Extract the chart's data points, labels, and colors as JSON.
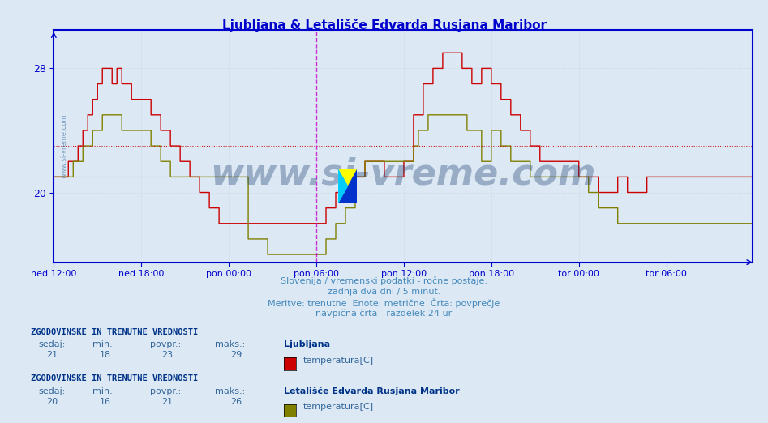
{
  "title": "Ljubljana & Letališče Edvarda Rusjana Maribor",
  "bg_color": "#dce9f5",
  "plot_bg_color": "#dce9f5",
  "axis_color": "#0000cc",
  "grid_color_minor": "#c8d8e8",
  "grid_color_major": "#b0c4d8",
  "lj_color": "#cc0000",
  "mb_color": "#808000",
  "avg_lj": 23,
  "avg_mb": 21,
  "avg_lj_color": "#cc0000",
  "avg_mb_color": "#808000",
  "vline_color": "#cc00cc",
  "ylim_min": 15.5,
  "ylim_max": 30.5,
  "yticks": [
    20,
    28
  ],
  "n_points": 576,
  "xtick_pos": [
    0,
    72,
    144,
    216,
    288,
    360,
    432,
    504
  ],
  "xtick_labels": [
    "ned 12:00",
    "ned 18:00",
    "pon 00:00",
    "pon 06:00",
    "pon 12:00",
    "pon 18:00",
    "tor 00:00",
    "tor 06:00"
  ],
  "vline_pos": [
    216,
    575
  ],
  "subtitle1": "Slovenija / vremenski podatki - ročne postaje.",
  "subtitle2": "zadnja dva dni / 5 minut.",
  "subtitle3": "Meritve: trenutne  Enote: metrične  Črta: povprečje",
  "subtitle4": "navpična črta - razdelek 24 ur",
  "stats1_label": "ZGODOVINSKE IN TRENUTNE VREDNOSTI",
  "stats1_sedaj": 21,
  "stats1_min": 18,
  "stats1_povpr": 23,
  "stats1_maks": 29,
  "station1_name": "Ljubljana",
  "legend1_label": "temperatura[C]",
  "stats2_label": "ZGODOVINSKE IN TRENUTNE VREDNOSTI",
  "stats2_sedaj": 20,
  "stats2_min": 16,
  "stats2_povpr": 21,
  "stats2_maks": 26,
  "station2_name": "Letališče Edvarda Rusjana Maribor",
  "legend2_label": "temperatura[C]"
}
